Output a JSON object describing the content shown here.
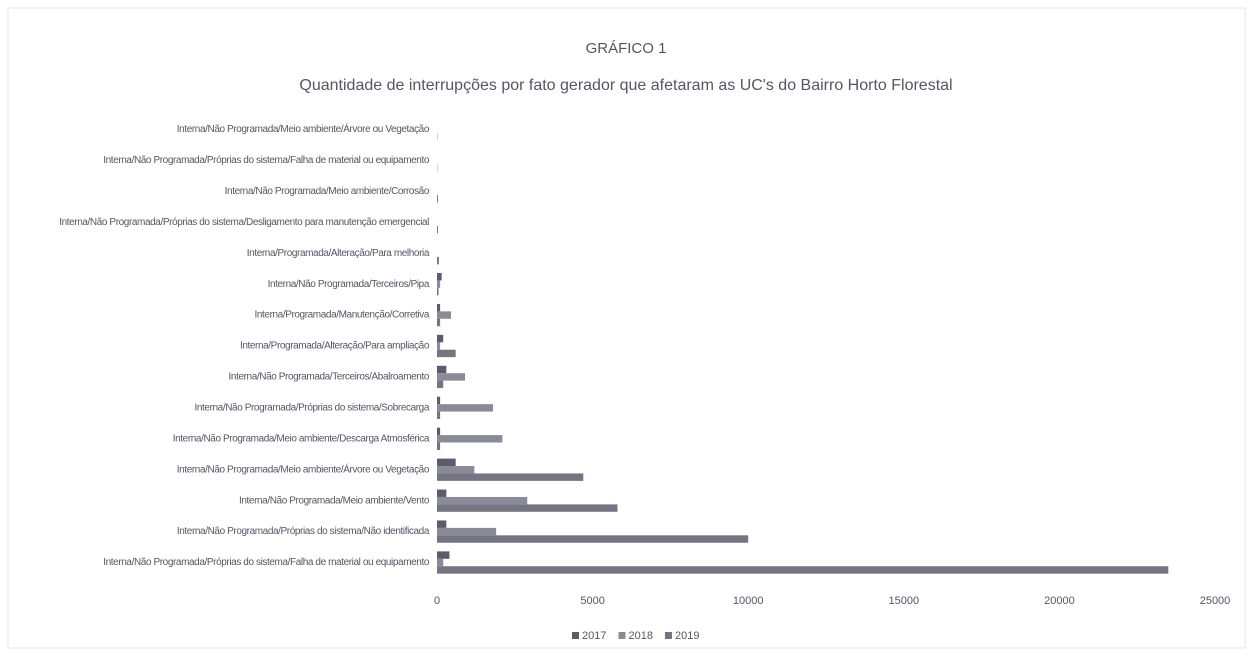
{
  "chart_data": {
    "type": "hbar",
    "title": "GRÁFICO 1",
    "subtitle": "Quantidade de interrupções por fato gerador que afetaram as UC's do Bairro Horto Florestal",
    "categories": [
      "Interna/Não Programada/Meio ambiente/Árvore ou Vegetação",
      "Interna/Não Programada/Próprias do sistema/Falha de material ou equipamento",
      "Interna/Não Programada/Meio ambiente/Corrosão",
      "Interna/Não Programada/Próprias do sistema/Desligamento para manutenção emergencial",
      "Interna/Programada/Alteração/Para melhoria",
      "Interna/Não Programada/Terceiros/Pipa",
      "Interna/Programada/Manutenção/Corretiva",
      "Interna/Programada/Alteração/Para ampliação",
      "Interna/Não Programada/Terceiros/Abalroamento",
      "Interna/Não Programada/Próprias do sistema/Sobrecarga",
      "Interna/Não Programada/Meio ambiente/Descarga Atmosférica",
      "Interna/Não Programada/Meio ambiente/Árvore ou Vegetação",
      "Interna/Não Programada/Meio ambiente/Vento",
      "Interna/Não Programada/Próprias do sistema/Não identificada",
      "Interna/Não Programada/Próprias do sistema/Falha de material ou equipamento"
    ],
    "series": [
      {
        "name": "2017",
        "color": "#5c5c6c",
        "values": [
          0,
          0,
          0,
          0,
          0,
          150,
          100,
          200,
          300,
          100,
          100,
          600,
          300,
          300,
          400
        ]
      },
      {
        "name": "2018",
        "color": "#8a8a98",
        "values": [
          0,
          0,
          0,
          0,
          0,
          100,
          450,
          100,
          900,
          1800,
          2100,
          1200,
          2900,
          1900,
          200
        ]
      },
      {
        "name": "2019",
        "color": "#747482",
        "values": [
          10,
          10,
          30,
          30,
          60,
          50,
          100,
          600,
          200,
          100,
          100,
          4700,
          5800,
          10000,
          23500
        ]
      }
    ],
    "xlim": [
      0,
      25000
    ],
    "xticks": [
      0,
      5000,
      10000,
      15000,
      20000,
      25000
    ],
    "grid": false,
    "legend": "bottom"
  }
}
